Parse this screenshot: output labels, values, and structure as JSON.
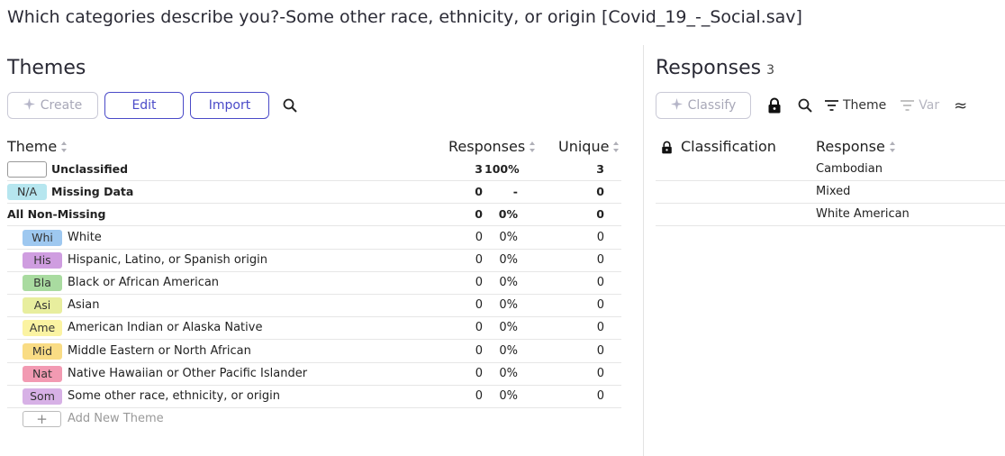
{
  "title": "Which categories describe you?-Some other race, ethnicity, or origin [Covid_19_-_Social.sav]",
  "themes_panel": {
    "heading": "Themes",
    "create_label": "Create",
    "edit_label": "Edit",
    "import_label": "Import",
    "columns": {
      "theme": "Theme",
      "responses": "Responses",
      "unique": "Unique"
    },
    "summary_rows": [
      {
        "badge": "",
        "label": "Unclassified",
        "responses": "3",
        "pct": "100%",
        "unique": "3",
        "badge_color": "#ffffff"
      },
      {
        "badge": "N/A",
        "label": "Missing Data",
        "responses": "0",
        "pct": "-",
        "unique": "0",
        "badge_color": "#b6e6ef"
      },
      {
        "label": "All Non-Missing",
        "responses": "0",
        "pct": "0%",
        "unique": "0"
      }
    ],
    "themes": [
      {
        "badge": "Whi",
        "label": "White",
        "responses": "0",
        "pct": "0%",
        "unique": "0",
        "color": "#9ec8f0"
      },
      {
        "badge": "His",
        "label": "Hispanic, Latino, or Spanish origin",
        "responses": "0",
        "pct": "0%",
        "unique": "0",
        "color": "#cf9de0"
      },
      {
        "badge": "Bla",
        "label": "Black or African American",
        "responses": "0",
        "pct": "0%",
        "unique": "0",
        "color": "#a9dba0"
      },
      {
        "badge": "Asi",
        "label": "Asian",
        "responses": "0",
        "pct": "0%",
        "unique": "0",
        "color": "#e8ee9e"
      },
      {
        "badge": "Ame",
        "label": "American Indian or Alaska Native",
        "responses": "0",
        "pct": "0%",
        "unique": "0",
        "color": "#fbf3a2"
      },
      {
        "badge": "Mid",
        "label": "Middle Eastern or North African",
        "responses": "0",
        "pct": "0%",
        "unique": "0",
        "color": "#f9dc84"
      },
      {
        "badge": "Nat",
        "label": "Native Hawaiian or Other Pacific Islander",
        "responses": "0",
        "pct": "0%",
        "unique": "0",
        "color": "#f29ab2"
      },
      {
        "badge": "Som",
        "label": "Some other race, ethnicity, or origin",
        "responses": "0",
        "pct": "0%",
        "unique": "0",
        "color": "#d7b1e6"
      }
    ],
    "add_new_label": "Add New Theme",
    "add_plus": "+"
  },
  "responses_panel": {
    "heading": "Responses",
    "count": "3",
    "classify_label": "Classify",
    "theme_filter_label": "Theme",
    "var_filter_label": "Var",
    "approx_symbol": "≈",
    "columns": {
      "classification": "Classification",
      "response": "Response"
    },
    "responses": [
      "Cambodian",
      "Mixed",
      "White American"
    ]
  }
}
